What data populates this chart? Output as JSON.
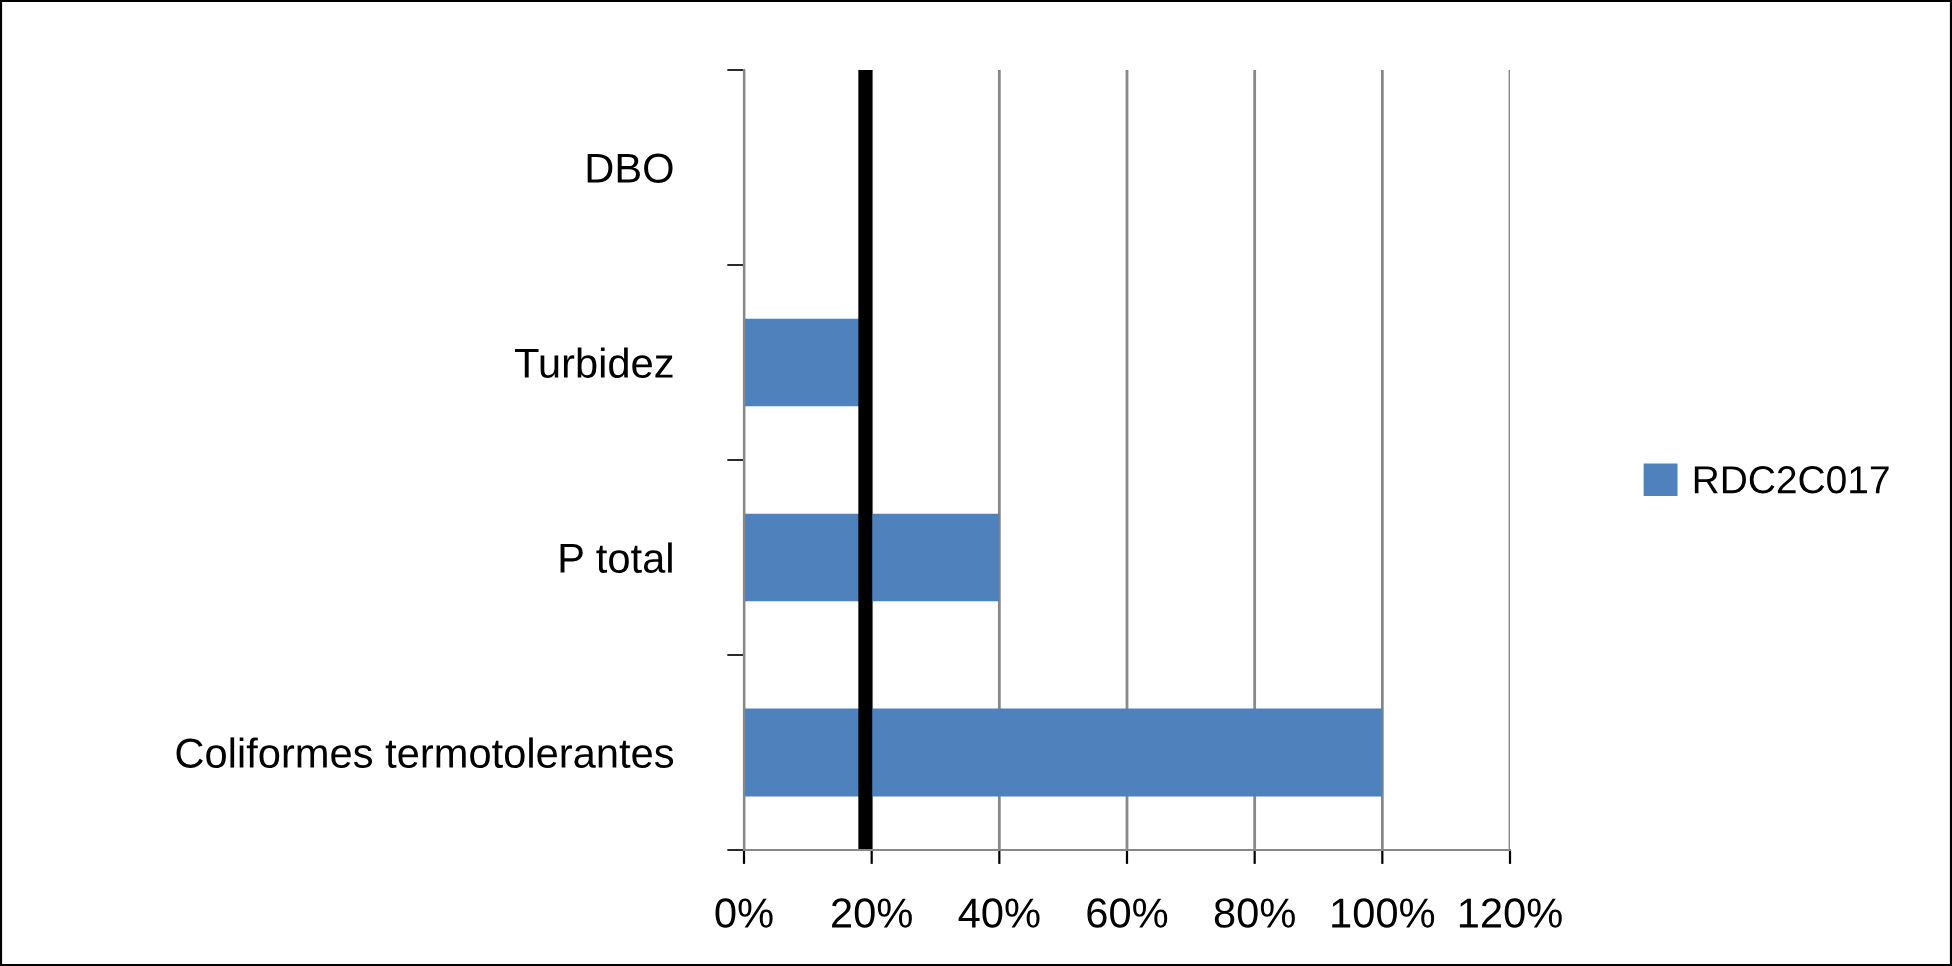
{
  "chart_data": {
    "type": "bar",
    "orientation": "horizontal",
    "categories": [
      "DBO",
      "Turbidez",
      "P total",
      "Coliformes termotolerantes"
    ],
    "series": [
      {
        "name": "RDC2C017",
        "color": "#4f81bd",
        "values": [
          0,
          18,
          40,
          100
        ]
      }
    ],
    "xlim": [
      0,
      120
    ],
    "xticks": [
      {
        "value": 0,
        "label": "0%"
      },
      {
        "value": 20,
        "label": "20%"
      },
      {
        "value": 40,
        "label": "40%"
      },
      {
        "value": 60,
        "label": "60%"
      },
      {
        "value": 80,
        "label": "80%"
      },
      {
        "value": 100,
        "label": "100%"
      },
      {
        "value": 120,
        "label": "120%"
      }
    ],
    "grid": "x",
    "legend": "right",
    "ref_lines": [
      {
        "axis": "x",
        "value": 19,
        "color": "#000000",
        "line_style": "solid"
      }
    ]
  }
}
